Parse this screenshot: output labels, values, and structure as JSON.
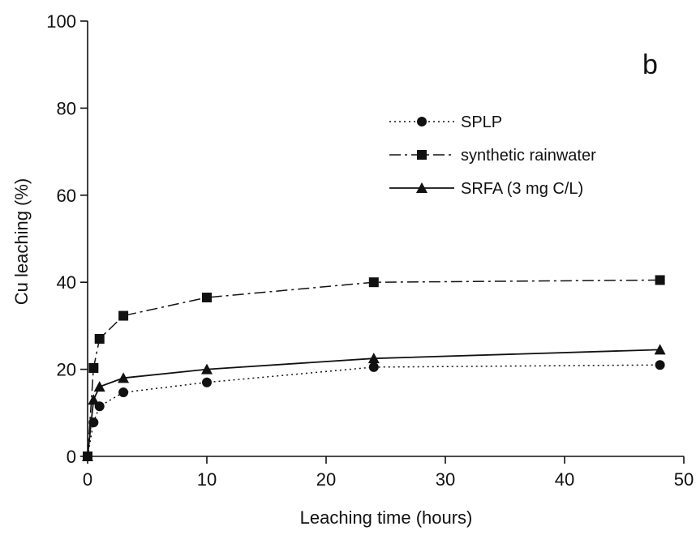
{
  "chart_data": {
    "type": "line",
    "panel_label": "b",
    "xlabel": "Leaching time (hours)",
    "ylabel": "Cu leaching (%)",
    "xlim": [
      0,
      50
    ],
    "ylim": [
      0,
      100
    ],
    "xticks": [
      0,
      10,
      20,
      30,
      40,
      50
    ],
    "yticks": [
      0,
      20,
      40,
      60,
      80,
      100
    ],
    "grid": false,
    "legend_position": "top-right",
    "series": [
      {
        "name": "SPLP",
        "marker": "circle",
        "line": "dotted",
        "x": [
          0,
          0.5,
          1,
          3,
          10,
          24,
          48
        ],
        "y": [
          0,
          7.8,
          11.5,
          14.7,
          17,
          20.5,
          21
        ]
      },
      {
        "name": "synthetic rainwater",
        "marker": "square",
        "line": "dashdot",
        "x": [
          0,
          0.5,
          1,
          3,
          10,
          24,
          48
        ],
        "y": [
          0,
          20.3,
          27,
          32.3,
          36.5,
          40,
          40.5
        ]
      },
      {
        "name": "SRFA (3 mg C/L)",
        "marker": "triangle",
        "line": "solid",
        "x": [
          0,
          0.5,
          1,
          3,
          10,
          24,
          48
        ],
        "y": [
          0,
          13,
          16,
          18,
          20,
          22.5,
          24.5
        ]
      }
    ]
  }
}
